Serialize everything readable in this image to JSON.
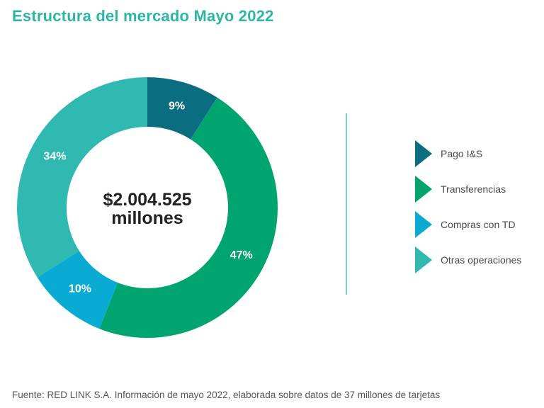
{
  "title": "Estructura del mercado Mayo 2022",
  "source": "Fuente: RED LINK S.A. Información de mayo 2022, elaborada sobre datos de 37 millones de tarjetas",
  "chart_data": {
    "type": "pie",
    "variant": "donut",
    "center_label": [
      "$2.004.525",
      "millones"
    ],
    "legend_position": "right",
    "series": [
      {
        "name": "Pago I&S",
        "value": 9,
        "label": "9%",
        "color": "#0a6e80"
      },
      {
        "name": "Transferencias",
        "value": 47,
        "label": "47%",
        "color": "#00a46f"
      },
      {
        "name": "Compras con TD",
        "value": 10,
        "label": "10%",
        "color": "#0aabd3"
      },
      {
        "name": "Otras operaciones",
        "value": 34,
        "label": "34%",
        "color": "#30b9b0"
      }
    ]
  }
}
